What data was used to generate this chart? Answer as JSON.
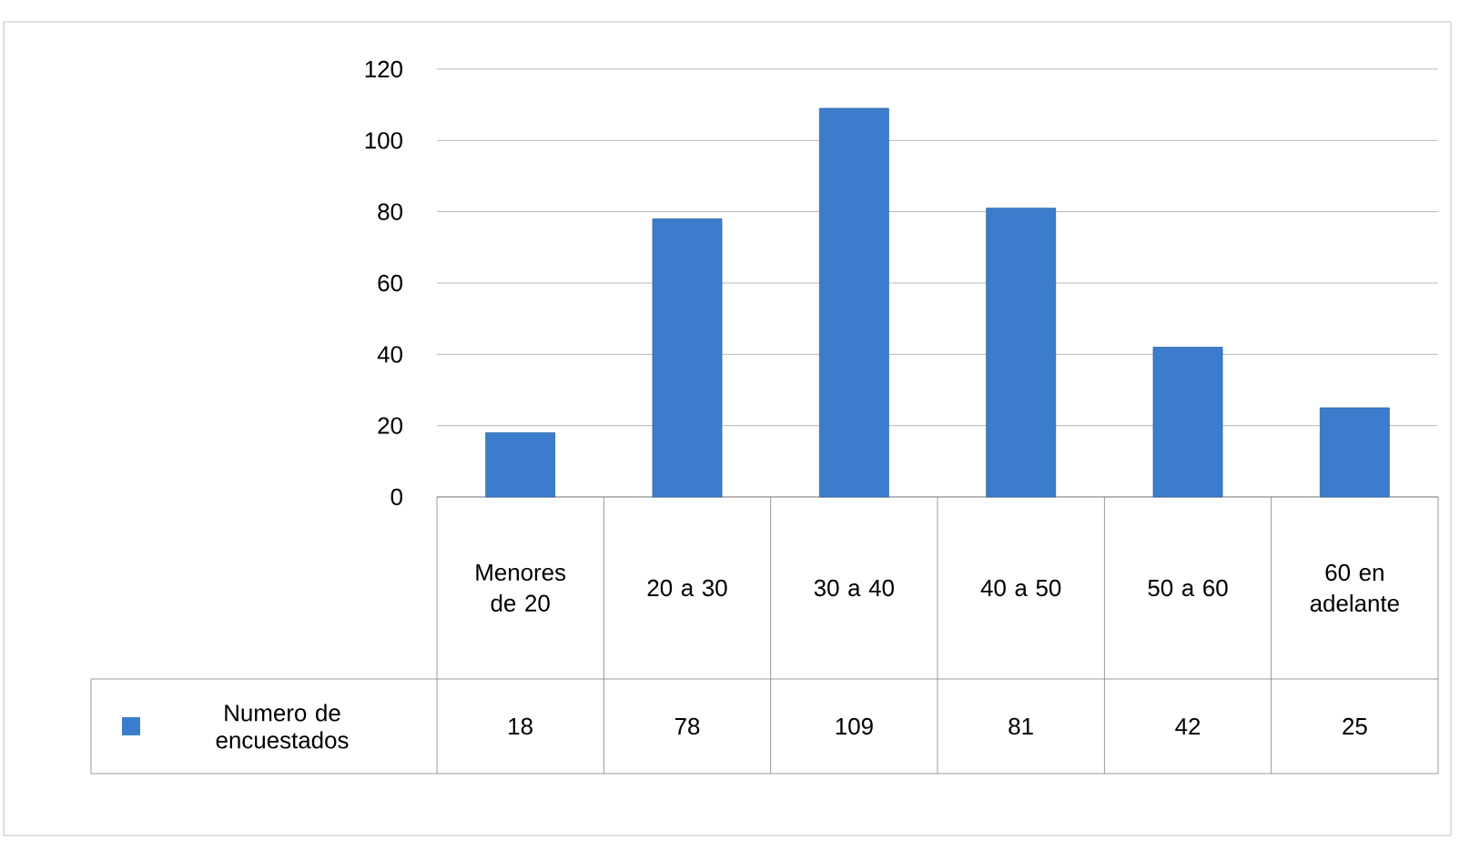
{
  "chart_data": {
    "type": "bar",
    "categories": [
      "Menores de 20",
      "20 a 30",
      "30 a 40",
      "40 a 50",
      "50 a 60",
      "60 en adelante"
    ],
    "series": [
      {
        "name": "Numero de encuestados",
        "color": "#3b7dcc",
        "values": [
          18,
          78,
          109,
          81,
          42,
          25
        ]
      }
    ],
    "ylim": [
      0,
      120
    ],
    "yticks": [
      0,
      20,
      40,
      60,
      80,
      100,
      120
    ],
    "grid": "y",
    "legend": "bottom left",
    "data_labels": true
  }
}
